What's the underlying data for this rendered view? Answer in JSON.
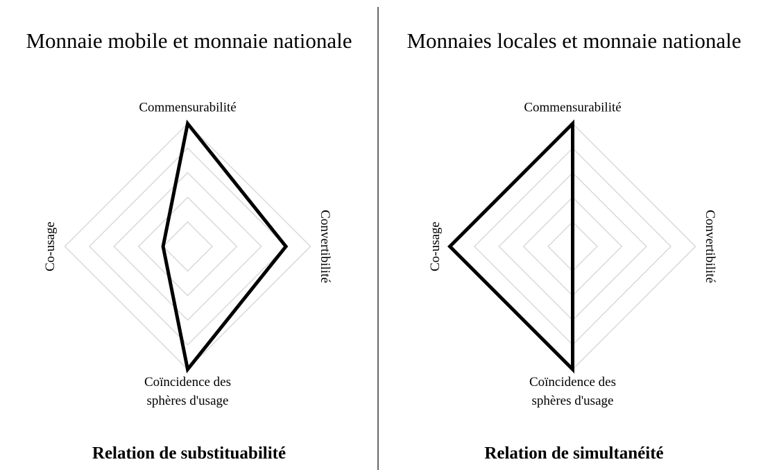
{
  "chart_data": [
    {
      "type": "radar",
      "title": "Monnaie mobile et monnaie nationale",
      "axes": [
        "Commensurabilité",
        "Convertibilité",
        "Coïncidence des sphères d'usage",
        "Co-usage"
      ],
      "values": [
        5,
        4,
        5,
        1
      ],
      "color": "#000000",
      "rlim": [
        0,
        5
      ],
      "rticks": [
        1,
        2,
        3,
        4,
        5
      ],
      "grid": true,
      "caption": "Relation de substituabilité"
    },
    {
      "type": "radar",
      "title": "Monnaies locales et monnaie nationale",
      "axes": [
        "Commensurabilité",
        "Convertibilité",
        "Coïncidence des sphères d'usage",
        "Co-usage"
      ],
      "values": [
        5,
        0,
        5,
        5
      ],
      "color": "#000000",
      "rlim": [
        0,
        5
      ],
      "rticks": [
        1,
        2,
        3,
        4,
        5
      ],
      "grid": true,
      "caption": "Relation de simultanéité"
    }
  ]
}
